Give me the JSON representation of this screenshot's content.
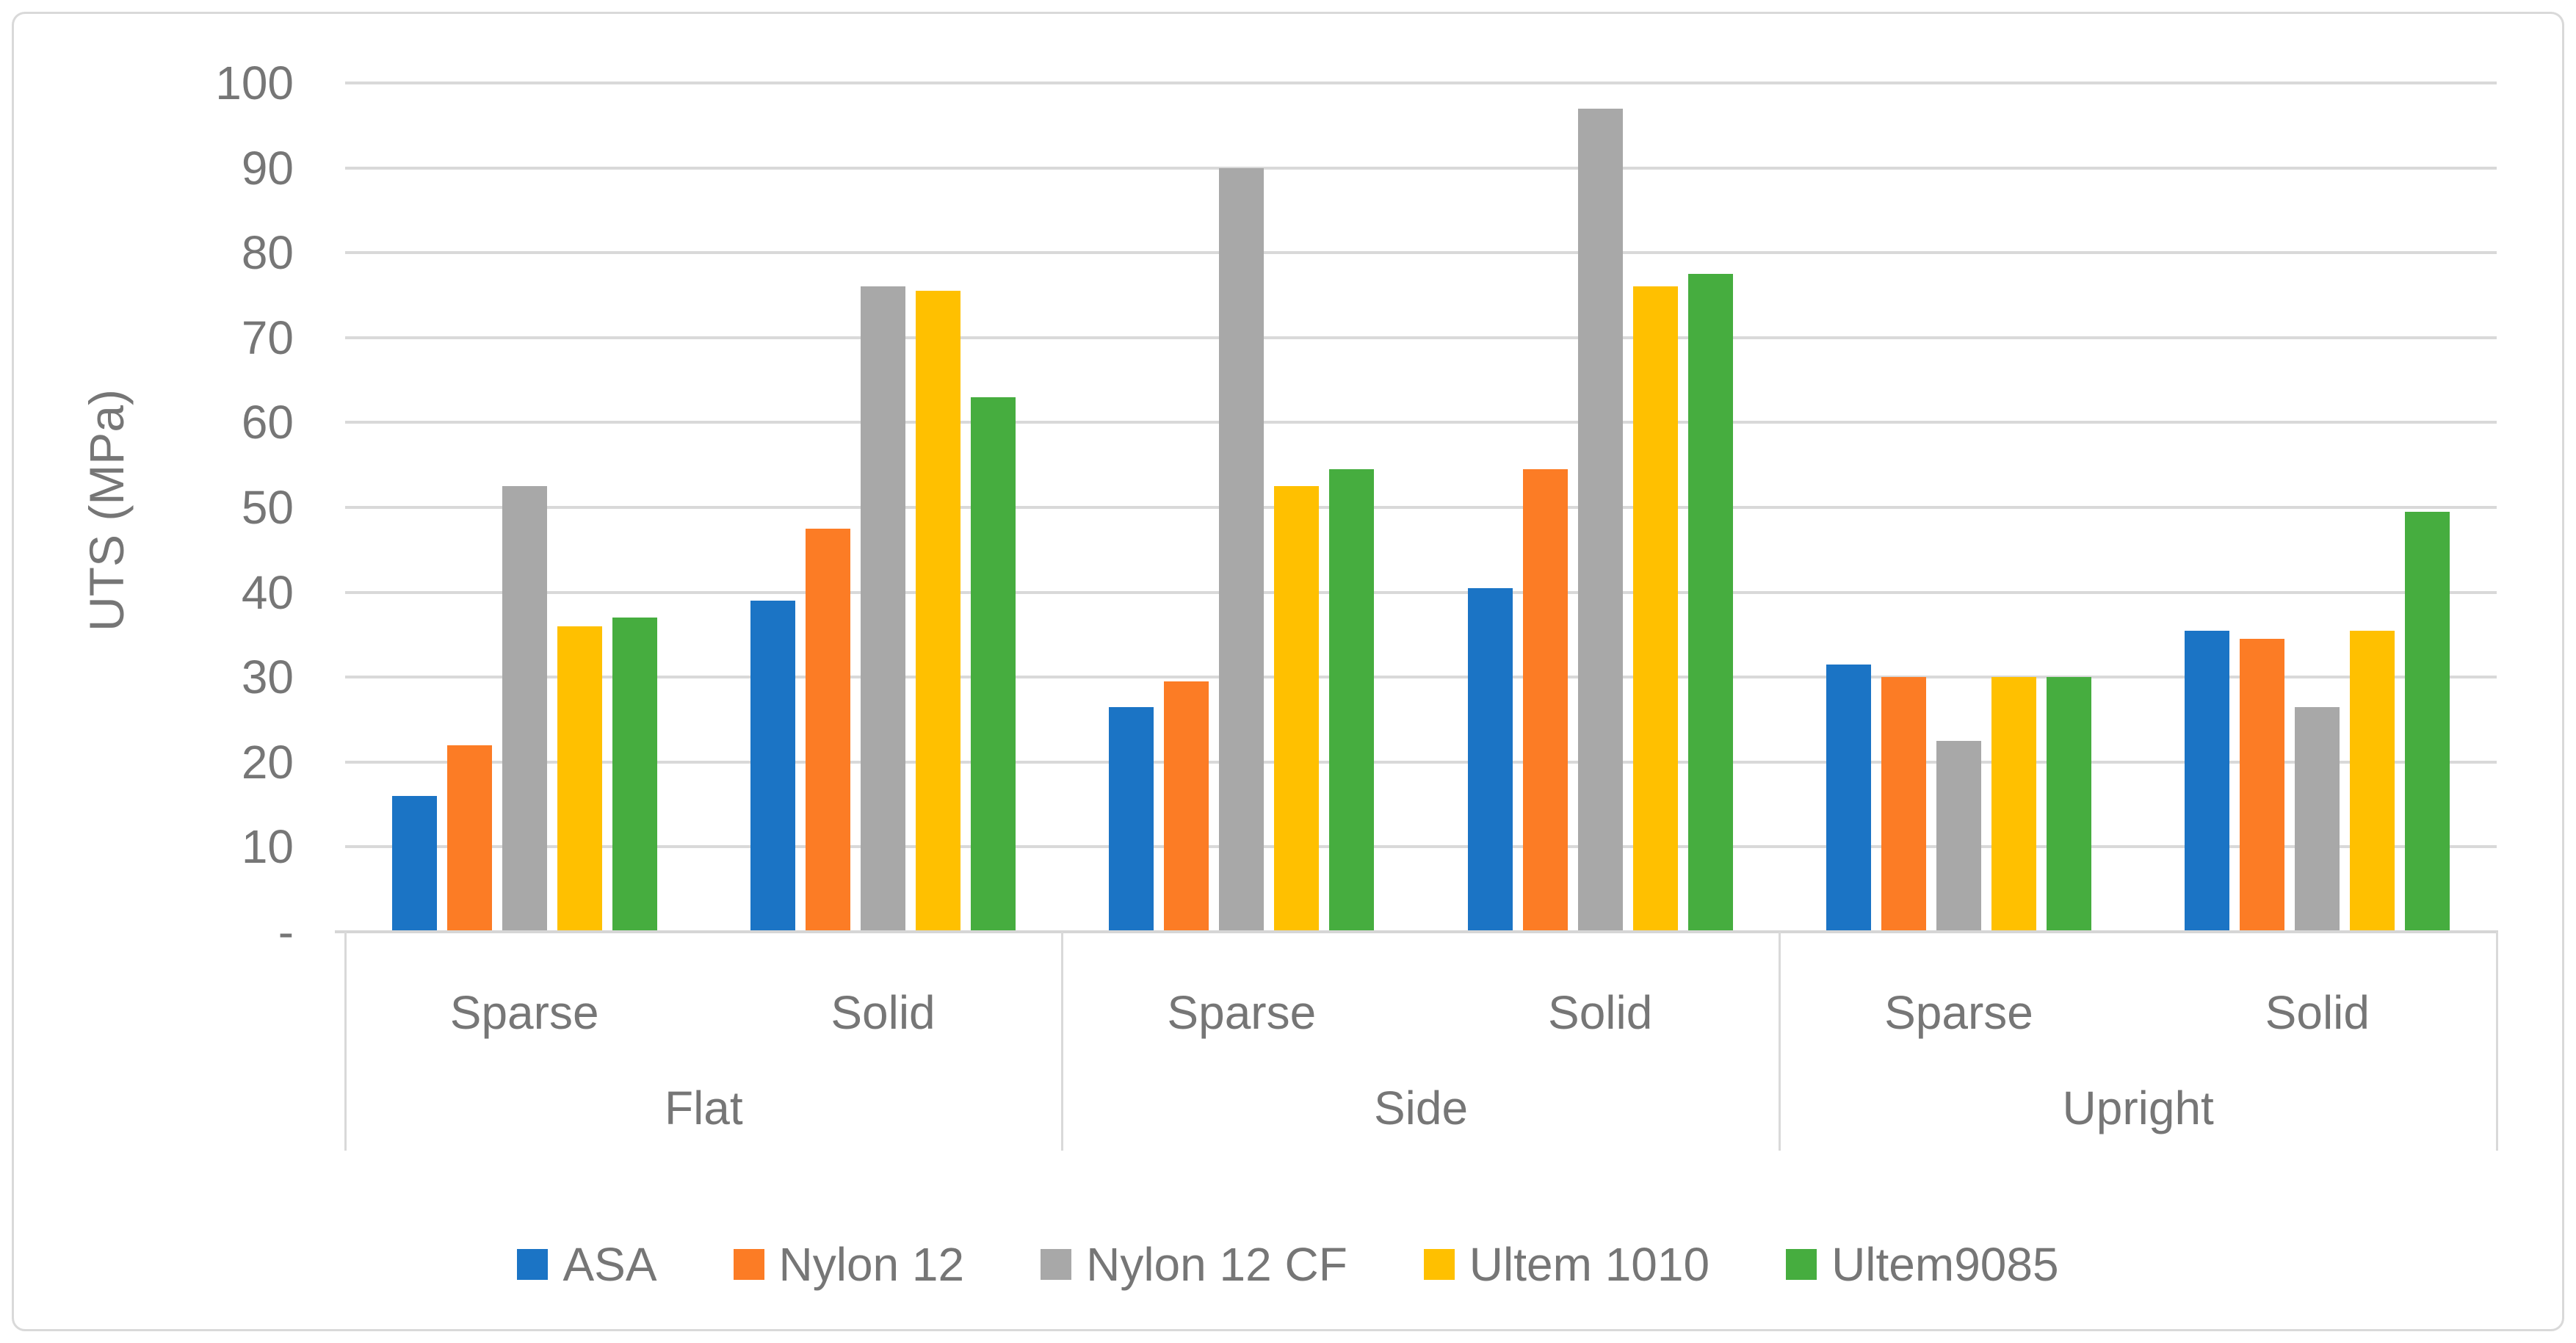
{
  "figure": {
    "background": "#FFFFFF",
    "border_color": "#D9D9D9",
    "gridline_color": "#D9D9D9",
    "axis_line_color": "#D6D6D6",
    "text_color": "#767676"
  },
  "chart_data": {
    "type": "bar",
    "title": "",
    "xlabel": "",
    "ylabel": "UTS (MPa)",
    "ylim": [
      0,
      100
    ],
    "grid": "horizontal",
    "legend_position": "bottom",
    "y_axis": {
      "tick_step": 10,
      "tick_labels": [
        "-",
        "10",
        "20",
        "30",
        "40",
        "50",
        "60",
        "70",
        "80",
        "90",
        "100"
      ]
    },
    "x_axis": {
      "outer_categories": [
        "Flat",
        "Side",
        "Upright"
      ],
      "inner_categories": [
        "Sparse",
        "Solid"
      ]
    },
    "categories": [
      "Flat Sparse",
      "Flat Solid",
      "Side Sparse",
      "Side Solid",
      "Upright Sparse",
      "Upright Solid"
    ],
    "series": [
      {
        "name": "ASA",
        "color": "#1B74C5",
        "values": [
          16,
          39,
          26.5,
          40.5,
          31.5,
          35.5
        ]
      },
      {
        "name": "Nylon 12",
        "color": "#FC7C25",
        "values": [
          22,
          47.5,
          29.5,
          54.5,
          30,
          34.5
        ]
      },
      {
        "name": "Nylon 12 CF",
        "color": "#A8A8A8",
        "values": [
          52.5,
          76,
          90,
          97,
          22.5,
          26.5
        ]
      },
      {
        "name": "Ultem 1010",
        "color": "#FFC000",
        "values": [
          36,
          75.5,
          52.5,
          76,
          30,
          35.5
        ]
      },
      {
        "name": "Ultem9085",
        "color": "#46AD3F",
        "values": [
          37,
          63,
          54.5,
          77.5,
          30,
          49.5
        ]
      }
    ]
  }
}
